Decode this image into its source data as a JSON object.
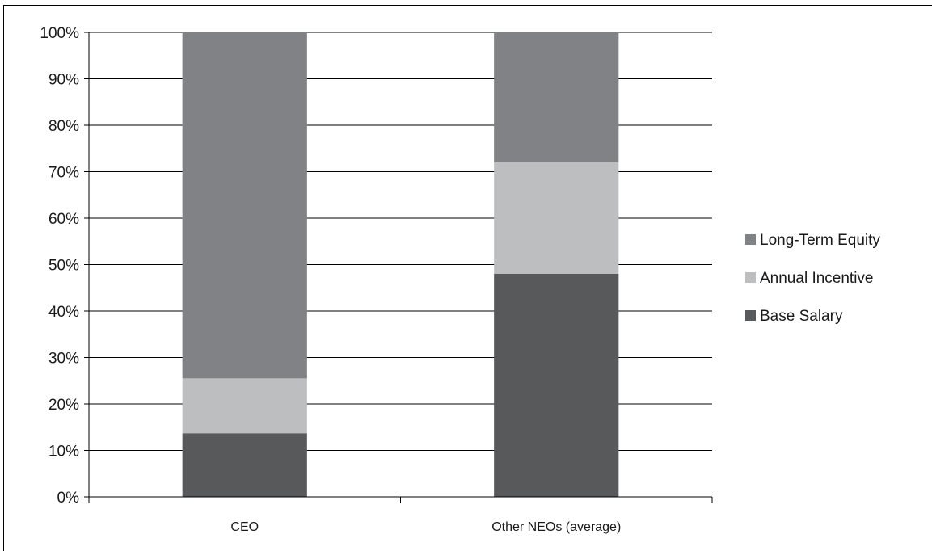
{
  "chart_data": {
    "type": "bar",
    "stacked": true,
    "percent_stacked": true,
    "title": "",
    "xlabel": "",
    "ylabel": "",
    "categories": [
      "CEO",
      "Other NEOs (average)"
    ],
    "series": [
      {
        "name": "Base Salary",
        "values": [
          13.7,
          48
        ],
        "color": "#58595b"
      },
      {
        "name": "Annual Incentive",
        "values": [
          11.8,
          24
        ],
        "color": "#bcbec0"
      },
      {
        "name": "Long-Term Equity",
        "values": [
          74.5,
          28
        ],
        "color": "#808285"
      }
    ],
    "ylim": [
      0,
      100
    ],
    "yticks": [
      "0%",
      "10%",
      "20%",
      "30%",
      "40%",
      "50%",
      "60%",
      "70%",
      "80%",
      "90%",
      "100%"
    ],
    "grid": true,
    "legend": {
      "position": "right",
      "order": [
        "Long-Term Equity",
        "Annual Incentive",
        "Base Salary"
      ]
    }
  }
}
